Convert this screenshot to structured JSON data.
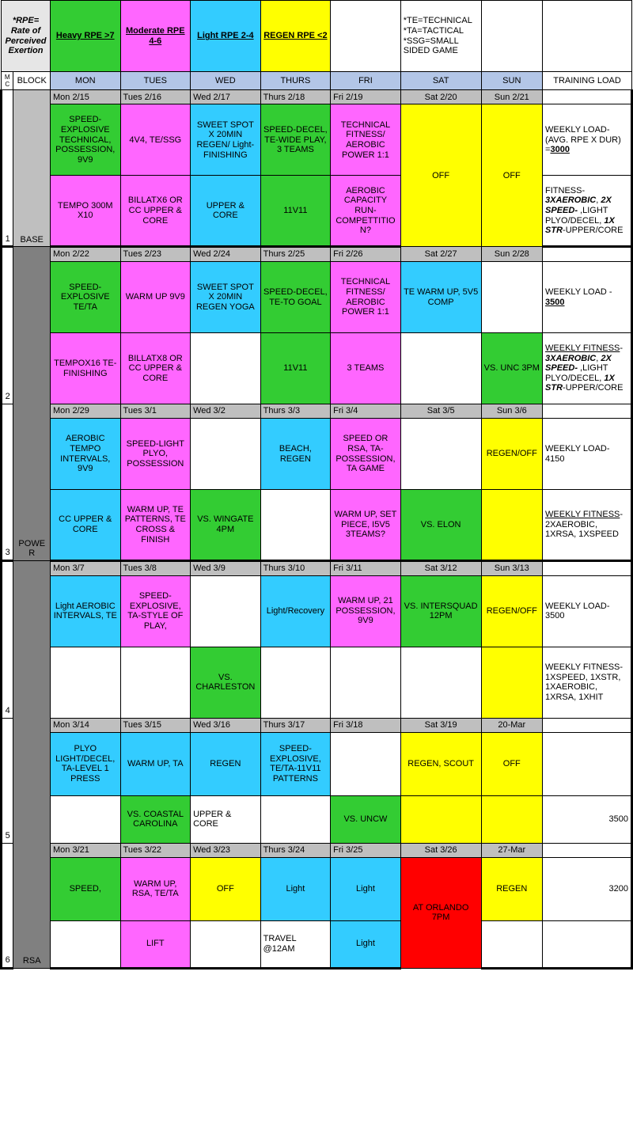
{
  "colors": {
    "heavy": "#33cc33",
    "moderate": "#ff66ff",
    "light": "#33ccff",
    "regen": "#ffff00",
    "header_blue": "#b3c6e7",
    "gray": "#bfbfbf",
    "dgray": "#808080",
    "vlgray": "#e6e6e6",
    "red": "#ff0000",
    "white": "#ffffff"
  },
  "legend": {
    "rpe_note": "*RPE= Rate of Perceived Exertion",
    "heavy": "Heavy RPE >7",
    "moderate": "Moderate RPE 4-6",
    "light": "Light RPE 2-4",
    "regen": "REGEN RPE <2",
    "abbrev": "*TE=TECHNICAL\n*TA=TACTICAL\n*SSG=SMALL SIDED GAME"
  },
  "headers": {
    "mc": "MC",
    "block": "BLOCK",
    "days": [
      "MON",
      "TUES",
      "WED",
      "THURS",
      "FRI",
      "SAT",
      "SUN"
    ],
    "load": "TRAINING LOAD"
  },
  "weeks": [
    {
      "mc": "1",
      "block": "BASE",
      "dates": [
        "Mon 2/15",
        "Tues 2/16",
        "Wed 2/17",
        "Thurs 2/18",
        "Fri 2/19",
        "Sat 2/20",
        "Sun 2/21"
      ],
      "r1": [
        {
          "c": "green",
          "t": "SPEED-EXPLOSIVE TECHNICAL, POSSESSION, 9V9"
        },
        {
          "c": "pink",
          "t": "4V4, TE/SSG"
        },
        {
          "c": "blue",
          "t": "SWEET SPOT X 20MIN REGEN/ Light-FINISHING"
        },
        {
          "c": "green",
          "t": "SPEED-DECEL,  TE-WIDE PLAY, 3 TEAMS"
        },
        {
          "c": "pink",
          "t": "TECHNICAL FITNESS/ AEROBIC POWER 1:1"
        },
        {
          "c": "yellow",
          "t": "OFF",
          "rowspan": 2
        },
        {
          "c": "yellow",
          "t": "OFF",
          "rowspan": 2
        }
      ],
      "r2": [
        {
          "c": "pink",
          "t": "TEMPO 300M X10"
        },
        {
          "c": "pink",
          "t": "BILLATX6 OR CC UPPER & CORE"
        },
        {
          "c": "blue",
          "t": "UPPER & CORE"
        },
        {
          "c": "green",
          "t": "11V11"
        },
        {
          "c": "pink",
          "t": "AEROBIC CAPACITY RUN-COMPETTITION?"
        }
      ],
      "load_a": "WEEKLY LOAD-(AVG. RPE X DUR) =",
      "load_a_val": "3000",
      "load_b": "FITNESS- 3XAEROBIC, 2X SPEED- ,LIGHT PLYO/DECEL, 1X STR-UPPER/CORE"
    },
    {
      "mc": "2",
      "block": "POWER",
      "dates": [
        "Mon 2/22",
        "Tues 2/23",
        "Wed 2/24",
        "Thurs 2/25",
        "Fri 2/26",
        "Sat 2/27",
        "Sun 2/28"
      ],
      "r1": [
        {
          "c": "green",
          "t": "SPEED-EXPLOSIVE TE/TA"
        },
        {
          "c": "pink",
          "t": "WARM UP 9V9"
        },
        {
          "c": "blue",
          "t": "SWEET SPOT X 20MIN REGEN YOGA"
        },
        {
          "c": "green",
          "t": "SPEED-DECEL,  TE-TO GOAL"
        },
        {
          "c": "pink",
          "t": "TECHNICAL FITNESS/ AEROBIC POWER 1:1"
        },
        {
          "c": "blue",
          "t": "TE WARM UP, 5V5 COMP"
        },
        {
          "c": "white",
          "t": ""
        }
      ],
      "r2": [
        {
          "c": "pink",
          "t": "TEMPOX16 TE-FINISHING"
        },
        {
          "c": "pink",
          "t": "BILLATX8 OR CC UPPER & CORE"
        },
        {
          "c": "white",
          "t": ""
        },
        {
          "c": "green",
          "t": "11V11"
        },
        {
          "c": "pink",
          "t": "3 TEAMS"
        },
        {
          "c": "white",
          "t": ""
        },
        {
          "c": "green",
          "t": "VS. UNC 3PM"
        }
      ],
      "load_a": "WEEKLY  LOAD - ",
      "load_a_val": "3500",
      "load_b_pre": "WEEKLY FITNESS",
      "load_b": "- 3XAEROBIC, 2X SPEED- ,LIGHT PLYO/DECEL, 1X STR-UPPER/CORE"
    },
    {
      "mc": "3",
      "dates": [
        "Mon 2/29",
        "Tues 3/1",
        "Wed 3/2",
        "Thurs 3/3",
        "Fri 3/4",
        "Sat 3/5",
        "Sun 3/6"
      ],
      "r1": [
        {
          "c": "blue",
          "t": "AEROBIC TEMPO INTERVALS, 9V9"
        },
        {
          "c": "pink",
          "t": "SPEED-LIGHT PLYO, POSSESSION"
        },
        {
          "c": "white",
          "t": ""
        },
        {
          "c": "blue",
          "t": "BEACH, REGEN"
        },
        {
          "c": "pink",
          "t": "SPEED OR RSA, TA-POSSESSION, TA GAME"
        },
        {
          "c": "white",
          "t": ""
        },
        {
          "c": "yellow",
          "t": "REGEN/OFF"
        }
      ],
      "r2": [
        {
          "c": "blue",
          "t": "CC UPPER & CORE"
        },
        {
          "c": "pink",
          "t": "WARM UP, TE PATTERNS, TE CROSS & FINISH"
        },
        {
          "c": "green",
          "t": "VS. WINGATE 4PM"
        },
        {
          "c": "white",
          "t": ""
        },
        {
          "c": "pink",
          "t": "WARM UP, SET PIECE, I5V5  3TEAMS?"
        },
        {
          "c": "green",
          "t": "VS. ELON"
        },
        {
          "c": "yellow",
          "t": ""
        }
      ],
      "load_a": "WEEKLY LOAD-4150",
      "load_b_pre": "WEEKLY FITNESS",
      "load_b": "- 2XAEROBIC, 1XRSA, 1XSPEED"
    },
    {
      "mc": "4",
      "block": "RSA",
      "dates": [
        "Mon 3/7",
        "Tues 3/8",
        "Wed 3/9",
        "Thurs 3/10",
        "Fri 3/11",
        "Sat 3/12",
        "Sun 3/13"
      ],
      "r1": [
        {
          "c": "blue",
          "t": "Light AEROBIC INTERVALS, TE"
        },
        {
          "c": "pink",
          "t": "SPEED-EXPLOSIVE, TA-STYLE OF PLAY,"
        },
        {
          "c": "white",
          "t": ""
        },
        {
          "c": "blue",
          "t": "Light/Recovery"
        },
        {
          "c": "pink",
          "t": "WARM UP, 21 POSSESSION, 9V9"
        },
        {
          "c": "green",
          "t": "VS. INTERSQUAD 12PM"
        },
        {
          "c": "yellow",
          "t": "REGEN/OFF"
        }
      ],
      "r2": [
        {
          "c": "white",
          "t": ""
        },
        {
          "c": "white",
          "t": ""
        },
        {
          "c": "green",
          "t": "VS. CHARLESTON"
        },
        {
          "c": "white",
          "t": ""
        },
        {
          "c": "white",
          "t": ""
        },
        {
          "c": "white",
          "t": ""
        },
        {
          "c": "yellow",
          "t": ""
        }
      ],
      "load_a": "WEEKLY LOAD-3500",
      "load_b": "WEEKLY FITNESS-1XSPEED, 1XSTR, 1XAEROBIC, 1XRSA, 1XHIT"
    },
    {
      "mc": "5",
      "dates": [
        "Mon 3/14",
        "Tues 3/15",
        "Wed 3/16",
        "Thurs 3/17",
        "Fri 3/18",
        "Sat 3/19",
        "20-Mar"
      ],
      "r1": [
        {
          "c": "blue",
          "t": "PLYO LIGHT/DECEL, TA-LEVEL 1 PRESS"
        },
        {
          "c": "blue",
          "t": "WARM UP, TA"
        },
        {
          "c": "blue",
          "t": "REGEN"
        },
        {
          "c": "blue",
          "t": "SPEED-EXPLOSIVE, TE/TA-11V11 PATTERNS"
        },
        {
          "c": "white",
          "t": ""
        },
        {
          "c": "yellow",
          "t": "REGEN, SCOUT"
        },
        {
          "c": "yellow",
          "t": "OFF"
        }
      ],
      "r2": [
        {
          "c": "white",
          "t": ""
        },
        {
          "c": "green",
          "t": "VS. COASTAL CAROLINA"
        },
        {
          "c": "white",
          "t": "UPPER & CORE"
        },
        {
          "c": "white",
          "t": ""
        },
        {
          "c": "green",
          "t": "VS. UNCW"
        },
        {
          "c": "yellow",
          "t": ""
        },
        {
          "c": "yellow",
          "t": ""
        }
      ],
      "load_b": "3500"
    },
    {
      "mc": "6",
      "dates": [
        "Mon 3/21",
        "Tues 3/22",
        "Wed 3/23",
        "Thurs 3/24",
        "Fri 3/25",
        "Sat 3/26",
        "27-Mar"
      ],
      "r1": [
        {
          "c": "green",
          "t": "SPEED,"
        },
        {
          "c": "pink",
          "t": "WARM UP, RSA, TE/TA"
        },
        {
          "c": "yellow",
          "t": "OFF"
        },
        {
          "c": "blue",
          "t": "Light"
        },
        {
          "c": "blue",
          "t": "Light"
        },
        {
          "c": "red",
          "t": "AT ORLANDO 7PM",
          "rowspan": 2
        },
        {
          "c": "yellow",
          "t": "REGEN"
        }
      ],
      "r2": [
        {
          "c": "white",
          "t": ""
        },
        {
          "c": "pink",
          "t": "LIFT"
        },
        {
          "c": "white",
          "t": ""
        },
        {
          "c": "white",
          "t": "TRAVEL @12AM"
        },
        {
          "c": "blue",
          "t": "Light"
        },
        {
          "c": "white",
          "t": ""
        }
      ],
      "load_a": "3200"
    }
  ]
}
